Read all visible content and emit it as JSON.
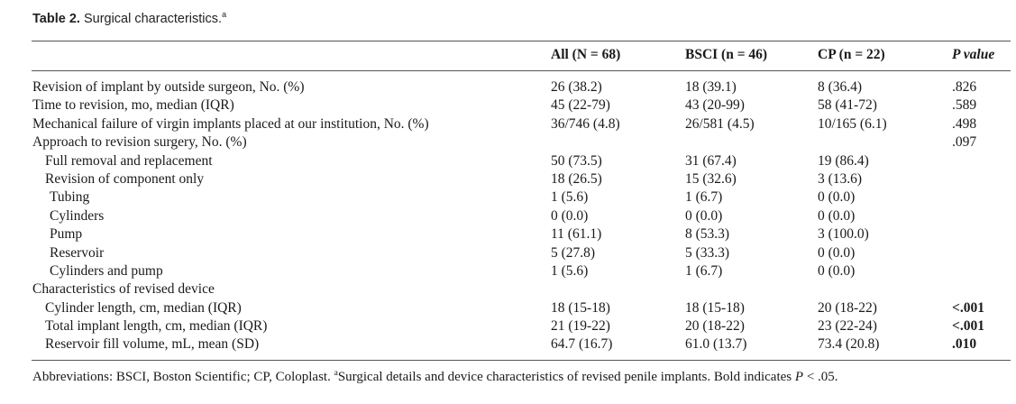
{
  "caption": {
    "label": "Table 2.",
    "text": "Surgical characteristics.",
    "marker": "a"
  },
  "columns": {
    "all": "All (N = 68)",
    "bsci": "BSCI (n = 46)",
    "cp": "CP (n = 22)",
    "p": "P value"
  },
  "rows": [
    {
      "label": "Revision of implant by outside surgeon, No. (%)",
      "indent": 0,
      "all": "26 (38.2)",
      "bsci": "18 (39.1)",
      "cp": "8 (36.4)",
      "p": ".826",
      "bold": false
    },
    {
      "label": "Time to revision, mo, median (IQR)",
      "indent": 0,
      "all": "45 (22-79)",
      "bsci": "43 (20-99)",
      "cp": "58 (41-72)",
      "p": ".589",
      "bold": false
    },
    {
      "label": "Mechanical failure of virgin implants placed at our institution, No. (%)",
      "indent": 0,
      "all": "36/746 (4.8)",
      "bsci": "26/581 (4.5)",
      "cp": "10/165 (6.1)",
      "p": ".498",
      "bold": false
    },
    {
      "label": "Approach to revision surgery, No. (%)",
      "indent": 0,
      "all": "",
      "bsci": "",
      "cp": "",
      "p": ".097",
      "bold": false
    },
    {
      "label": "Full removal and replacement",
      "indent": 1,
      "all": "50 (73.5)",
      "bsci": "31 (67.4)",
      "cp": "19 (86.4)",
      "p": "",
      "bold": false
    },
    {
      "label": "Revision of component only",
      "indent": 1,
      "all": "18 (26.5)",
      "bsci": "15 (32.6)",
      "cp": "3 (13.6)",
      "p": "",
      "bold": false
    },
    {
      "label": "Tubing",
      "indent": 2,
      "all": "1 (5.6)",
      "bsci": "1 (6.7)",
      "cp": "0 (0.0)",
      "p": "",
      "bold": false
    },
    {
      "label": "Cylinders",
      "indent": 2,
      "all": "0 (0.0)",
      "bsci": "0 (0.0)",
      "cp": "0 (0.0)",
      "p": "",
      "bold": false
    },
    {
      "label": "Pump",
      "indent": 2,
      "all": "11 (61.1)",
      "bsci": "8 (53.3)",
      "cp": "3 (100.0)",
      "p": "",
      "bold": false
    },
    {
      "label": "Reservoir",
      "indent": 2,
      "all": "5 (27.8)",
      "bsci": "5 (33.3)",
      "cp": "0 (0.0)",
      "p": "",
      "bold": false
    },
    {
      "label": "Cylinders and pump",
      "indent": 2,
      "all": "1 (5.6)",
      "bsci": "1 (6.7)",
      "cp": "0 (0.0)",
      "p": "",
      "bold": false
    },
    {
      "label": "Characteristics of revised device",
      "indent": 0,
      "all": "",
      "bsci": "",
      "cp": "",
      "p": "",
      "bold": false
    },
    {
      "label": "Cylinder length, cm, median (IQR)",
      "indent": 1,
      "all": "18 (15-18)",
      "bsci": "18 (15-18)",
      "cp": "20 (18-22)",
      "p": "<.001",
      "bold": true
    },
    {
      "label": "Total implant length, cm, median (IQR)",
      "indent": 1,
      "all": "21 (19-22)",
      "bsci": "20 (18-22)",
      "cp": "23 (22-24)",
      "p": "<.001",
      "bold": true
    },
    {
      "label": "Reservoir fill volume, mL, mean (SD)",
      "indent": 1,
      "all": "64.7 (16.7)",
      "bsci": "61.0 (13.7)",
      "cp": "73.4 (20.8)",
      "p": ".010",
      "bold": true
    }
  ],
  "footnote": {
    "abbrev": "Abbreviations: BSCI, Boston Scientific; CP, Coloplast.",
    "marker": "a",
    "text": "Surgical details and device characteristics of revised penile implants. Bold indicates",
    "p_symbol": "P",
    "threshold": "< .05."
  }
}
